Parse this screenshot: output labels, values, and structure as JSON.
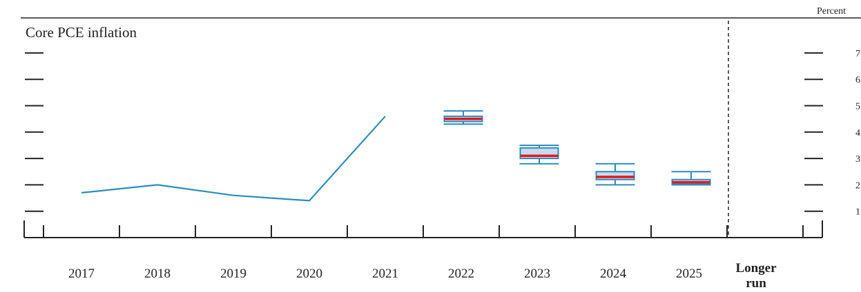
{
  "chart_data": {
    "type": "box",
    "title": "Core PCE inflation",
    "unit_label": "Percent",
    "ylim": [
      0,
      7
    ],
    "y_ticks": [
      "1",
      "2",
      "3",
      "4",
      "5",
      "6",
      "7"
    ],
    "x_ticks": [
      "2017",
      "2018",
      "2019",
      "2020",
      "2021",
      "2022",
      "2023",
      "2024",
      "2025"
    ],
    "longer_run_label": [
      "Longer",
      "run"
    ],
    "history": {
      "x": [
        "2017",
        "2018",
        "2019",
        "2020",
        "2021"
      ],
      "y": [
        1.7,
        2.0,
        1.6,
        1.4,
        4.6
      ]
    },
    "projections": [
      {
        "x": "2022",
        "min": 4.3,
        "q1": 4.4,
        "median": 4.5,
        "q3": 4.6,
        "max": 4.8
      },
      {
        "x": "2023",
        "min": 2.8,
        "q1": 3.0,
        "median": 3.1,
        "q3": 3.4,
        "max": 3.5
      },
      {
        "x": "2024",
        "min": 2.0,
        "q1": 2.2,
        "median": 2.3,
        "q3": 2.5,
        "max": 2.8
      },
      {
        "x": "2025",
        "min": 2.0,
        "q1": 2.05,
        "median": 2.1,
        "q3": 2.2,
        "max": 2.5
      }
    ],
    "colors": {
      "history_line": "#2b8cbe",
      "box_fill": "#c6dbef",
      "box_edge": "#2b8cbe",
      "median": "#e31a1c",
      "axis": "#222222"
    },
    "grid": false
  }
}
